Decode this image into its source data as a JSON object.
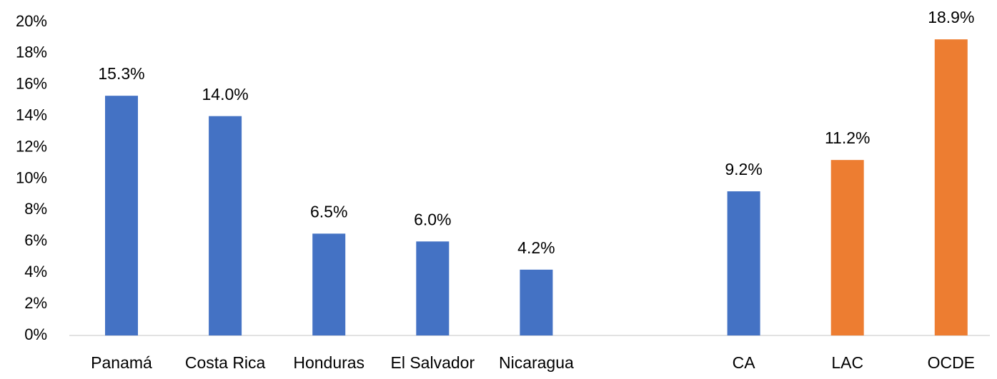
{
  "chart_data": {
    "type": "bar",
    "categories": [
      "Panamá",
      "Costa Rica",
      "Honduras",
      "El Salvador",
      "Nicaragua",
      null,
      "CA",
      "LAC",
      "OCDE"
    ],
    "values": [
      15.3,
      14.0,
      6.5,
      6.0,
      4.2,
      null,
      9.2,
      11.2,
      18.9
    ],
    "value_labels": [
      "15.3%",
      "14.0%",
      "6.5%",
      "6.0%",
      "4.2%",
      null,
      "9.2%",
      "11.2%",
      "18.9%"
    ],
    "colors": [
      "#4472c4",
      "#4472c4",
      "#4472c4",
      "#4472c4",
      "#4472c4",
      null,
      "#4472c4",
      "#ed7d31",
      "#ed7d31"
    ],
    "ylim": [
      0,
      20
    ],
    "yticks": [
      {
        "value": 0,
        "label": "0%"
      },
      {
        "value": 2,
        "label": "2%"
      },
      {
        "value": 4,
        "label": "4%"
      },
      {
        "value": 6,
        "label": "6%"
      },
      {
        "value": 8,
        "label": "8%"
      },
      {
        "value": 10,
        "label": "10%"
      },
      {
        "value": 12,
        "label": "12%"
      },
      {
        "value": 14,
        "label": "14%"
      },
      {
        "value": 16,
        "label": "16%"
      },
      {
        "value": 18,
        "label": "18%"
      },
      {
        "value": 20,
        "label": "20%"
      }
    ],
    "grid": false
  }
}
